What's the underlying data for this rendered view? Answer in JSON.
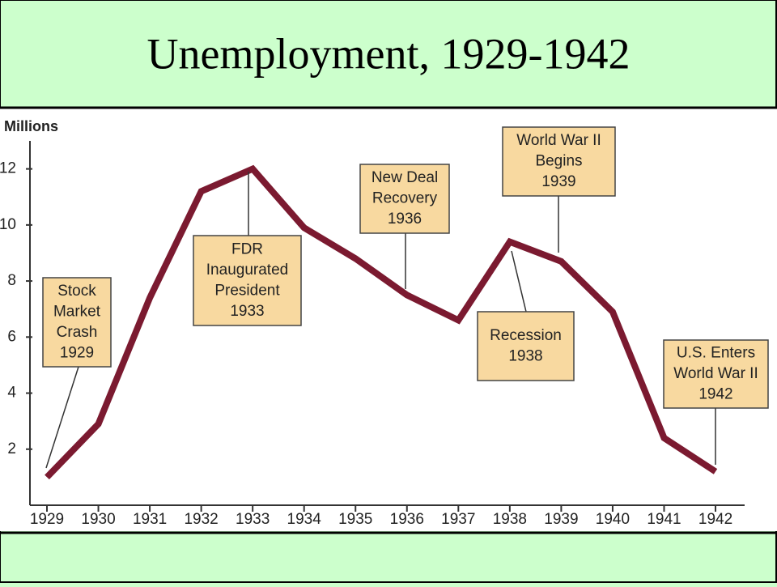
{
  "chart_data": {
    "type": "line",
    "title": "Unemployment, 1929-1942",
    "y_label": "Millions",
    "categories": [
      "1929",
      "1930",
      "1931",
      "1932",
      "1933",
      "1934",
      "1935",
      "1936",
      "1937",
      "1938",
      "1939",
      "1940",
      "1941",
      "1942"
    ],
    "values": [
      1.0,
      2.9,
      7.4,
      11.2,
      12.0,
      9.9,
      8.8,
      7.5,
      6.6,
      9.4,
      8.7,
      6.9,
      2.4,
      1.2
    ],
    "color": "#7b1a30",
    "ylim": [
      0,
      13
    ],
    "yticks": [
      2,
      4,
      6,
      8,
      10,
      12
    ],
    "annotations": [
      {
        "lines": [
          "Stock",
          "Market",
          "Crash",
          "1929"
        ]
      },
      {
        "lines": [
          "FDR",
          "Inaugurated",
          "President",
          "1933"
        ]
      },
      {
        "lines": [
          "New Deal",
          "Recovery",
          "1936"
        ]
      },
      {
        "lines": [
          "World War II",
          "Begins",
          "1939"
        ]
      },
      {
        "lines": [
          "Recession",
          "1938"
        ]
      },
      {
        "lines": [
          "U.S. Enters",
          "World War II",
          "1942"
        ]
      }
    ]
  }
}
